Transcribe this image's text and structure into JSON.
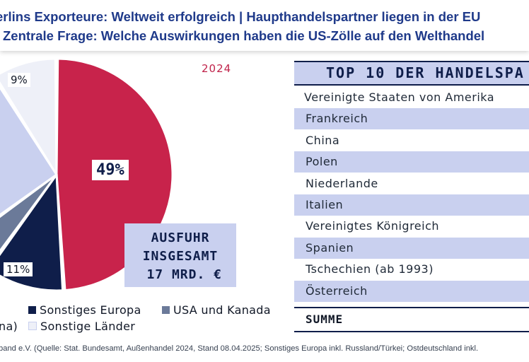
{
  "header": {
    "line1": "erlins Exporteure: Weltweit erfolgreich | Haupthandelspartner liegen in der EU",
    "line2": "Zentrale Frage: Welche Auswirkungen haben die US-Zölle auf den Welthandel"
  },
  "chart_data": [
    {
      "type": "pie",
      "title": "2024",
      "slices": [
        {
          "label": "",
          "value": 49,
          "display": "49%",
          "color": "#c8234b"
        },
        {
          "label": "Sonstiges Europa",
          "value": 11,
          "display": "11%",
          "color": "#0f1e4a"
        },
        {
          "label": "USA und Kanada",
          "value": 5,
          "display": "",
          "color": "#6b7a99"
        },
        {
          "label": "",
          "value": 26,
          "display": "",
          "color": "#c9d0ef"
        },
        {
          "label": "Sonstige Länder",
          "value": 9,
          "display": "9%",
          "color": "#eef0f8"
        }
      ],
      "center_box": {
        "line1": "AUSFUHR",
        "line2": "INSGESAMT",
        "line3": "17 MRD. €"
      },
      "legend": [
        {
          "label": "Sonstiges Europa",
          "color": "#0f1e4a"
        },
        {
          "label": "USA und Kanada",
          "color": "#6b7a99"
        },
        {
          "label": "Sonstige Länder",
          "color": "#eef0f8"
        }
      ],
      "legend_partial_text": "na)"
    },
    {
      "type": "table",
      "title": "TOP 10 DER HANDELSPA",
      "rows": [
        "Vereinigte Staaten von Amerika",
        "Frankreich",
        "China",
        "Polen",
        "Niederlande",
        "Italien",
        "Vereinigtes Königreich",
        "Spanien",
        "Tschechien (ab 1993)",
        "Österreich"
      ],
      "summary_label": "SUMME"
    }
  ],
  "footer": {
    "source": "band e.V. (Quelle: Stat. Bundesamt, Außenhandel 2024, Stand 08.04.2025; Sonstiges Europa inkl. Russland/Türkei; Ostdeutschland inkl."
  }
}
